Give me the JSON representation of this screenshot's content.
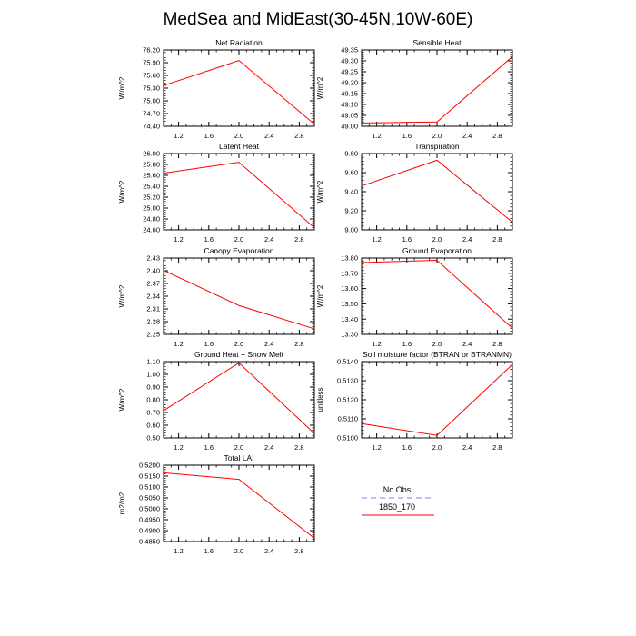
{
  "figure": {
    "title": "MedSea and MidEast(30-45N,10W-60E)"
  },
  "legend": {
    "entries": [
      {
        "label": "No Obs",
        "color": "#9999ff",
        "style": "dashed"
      },
      {
        "label": "1850_170",
        "color": "#ff0000",
        "style": "solid"
      }
    ]
  },
  "chart_data": [
    {
      "type": "line",
      "title": "Net Radiation",
      "ylabel": "W/m^2",
      "x": [
        1,
        2,
        3
      ],
      "series": [
        {
          "values": [
            75.36,
            75.95,
            74.45
          ],
          "color": "#ff0000"
        }
      ],
      "xlim": [
        1,
        3
      ],
      "ylim": [
        74.4,
        76.2
      ],
      "xticks": [
        "1.2",
        "1.6",
        "2.0",
        "2.4",
        "2.8"
      ],
      "yticks": [
        "74.40",
        "74.70",
        "75.00",
        "75.30",
        "75.60",
        "75.90",
        "76.20"
      ]
    },
    {
      "type": "line",
      "title": "Sensible Heat",
      "ylabel": "W/m^2",
      "x": [
        1,
        2,
        3
      ],
      "series": [
        {
          "values": [
            49.015,
            49.02,
            49.32
          ],
          "color": "#ff0000"
        }
      ],
      "xlim": [
        1,
        3
      ],
      "ylim": [
        49.0,
        49.35
      ],
      "xticks": [
        "1.2",
        "1.6",
        "2.0",
        "2.4",
        "2.8"
      ],
      "yticks": [
        "49.00",
        "49.05",
        "49.10",
        "49.15",
        "49.20",
        "49.25",
        "49.30",
        "49.35"
      ]
    },
    {
      "type": "line",
      "title": "Latent Heat",
      "ylabel": "W/m^2",
      "x": [
        1,
        2,
        3
      ],
      "series": [
        {
          "values": [
            25.64,
            25.84,
            24.64
          ],
          "color": "#ff0000"
        }
      ],
      "xlim": [
        1,
        3
      ],
      "ylim": [
        24.6,
        26.0
      ],
      "xticks": [
        "1.2",
        "1.6",
        "2.0",
        "2.4",
        "2.8"
      ],
      "yticks": [
        "24.60",
        "24.80",
        "25.00",
        "25.20",
        "25.40",
        "25.60",
        "25.80",
        "26.00"
      ]
    },
    {
      "type": "line",
      "title": "Transpiration",
      "ylabel": "W/m^2",
      "x": [
        1,
        2,
        3
      ],
      "series": [
        {
          "values": [
            9.46,
            9.73,
            9.08
          ],
          "color": "#ff0000"
        }
      ],
      "xlim": [
        1,
        3
      ],
      "ylim": [
        9.0,
        9.8
      ],
      "xticks": [
        "1.2",
        "1.6",
        "2.0",
        "2.4",
        "2.8"
      ],
      "yticks": [
        "9.00",
        "9.20",
        "9.40",
        "9.60",
        "9.80"
      ]
    },
    {
      "type": "line",
      "title": "Canopy Evaporation",
      "ylabel": "W/m^2",
      "x": [
        1,
        2,
        3
      ],
      "series": [
        {
          "values": [
            2.401,
            2.318,
            2.263
          ],
          "color": "#ff0000"
        }
      ],
      "xlim": [
        1,
        3
      ],
      "ylim": [
        2.25,
        2.43
      ],
      "xticks": [
        "1.2",
        "1.6",
        "2.0",
        "2.4",
        "2.8"
      ],
      "yticks": [
        "2.25",
        "2.28",
        "2.31",
        "2.34",
        "2.37",
        "2.40",
        "2.43"
      ]
    },
    {
      "type": "line",
      "title": "Ground Evaporation",
      "ylabel": "W/m^2",
      "x": [
        1,
        2,
        3
      ],
      "series": [
        {
          "values": [
            13.77,
            13.785,
            13.34
          ],
          "color": "#ff0000"
        }
      ],
      "xlim": [
        1,
        3
      ],
      "ylim": [
        13.3,
        13.8
      ],
      "xticks": [
        "1.2",
        "1.6",
        "2.0",
        "2.4",
        "2.8"
      ],
      "yticks": [
        "13.30",
        "13.40",
        "13.50",
        "13.60",
        "13.70",
        "13.80"
      ]
    },
    {
      "type": "line",
      "title": "Ground Heat + Snow Melt",
      "ylabel": "W/m^2",
      "x": [
        1,
        2,
        3
      ],
      "series": [
        {
          "values": [
            0.715,
            1.09,
            0.535
          ],
          "color": "#ff0000"
        }
      ],
      "xlim": [
        1,
        3
      ],
      "ylim": [
        0.5,
        1.1
      ],
      "xticks": [
        "1.2",
        "1.6",
        "2.0",
        "2.4",
        "2.8"
      ],
      "yticks": [
        "0.50",
        "0.60",
        "0.70",
        "0.80",
        "0.90",
        "1.00",
        "1.10"
      ]
    },
    {
      "type": "line",
      "title": "Soil moisture factor (BTRAN or BTRANMN)",
      "ylabel": "unitless",
      "x": [
        1,
        2,
        3
      ],
      "series": [
        {
          "values": [
            0.51075,
            0.51013,
            0.51385
          ],
          "color": "#ff0000"
        }
      ],
      "xlim": [
        1,
        3
      ],
      "ylim": [
        0.51,
        0.514
      ],
      "xticks": [
        "1.2",
        "1.6",
        "2.0",
        "2.4",
        "2.8"
      ],
      "yticks": [
        "0.5100",
        "0.5110",
        "0.5120",
        "0.5130",
        "0.5140"
      ]
    },
    {
      "type": "line",
      "title": "Total LAI",
      "ylabel": "m2/m2",
      "x": [
        1,
        2,
        3
      ],
      "series": [
        {
          "values": [
            0.5165,
            0.5135,
            0.4865
          ],
          "color": "#ff0000"
        }
      ],
      "xlim": [
        1,
        3
      ],
      "ylim": [
        0.485,
        0.52
      ],
      "xticks": [
        "1.2",
        "1.6",
        "2.0",
        "2.4",
        "2.8"
      ],
      "yticks": [
        "0.4850",
        "0.4900",
        "0.4950",
        "0.5000",
        "0.5050",
        "0.5100",
        "0.5150",
        "0.5200"
      ]
    }
  ]
}
